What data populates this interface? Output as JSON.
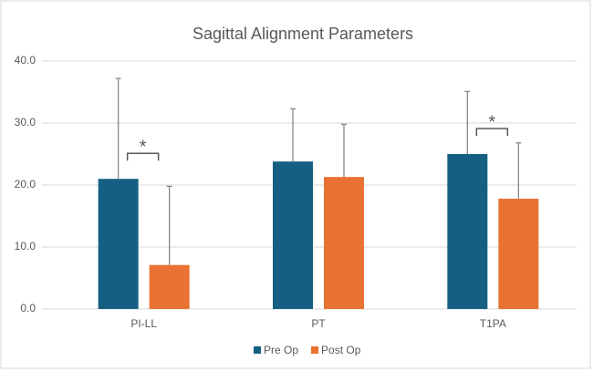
{
  "chart_data": {
    "type": "bar",
    "title": "Sagittal Alignment Parameters",
    "categories": [
      "PI-LL",
      "PT",
      "T1PA"
    ],
    "series": [
      {
        "name": "Pre Op",
        "color": "#156082",
        "values": [
          21.0,
          23.8,
          25.0
        ],
        "errors": [
          16.2,
          8.5,
          10.1
        ]
      },
      {
        "name": "Post Op",
        "color": "#e97132",
        "values": [
          7.1,
          21.3,
          17.8
        ],
        "errors": [
          12.7,
          8.5,
          9.0
        ]
      }
    ],
    "ylim": [
      0,
      40
    ],
    "yticks": [
      {
        "value": 0,
        "label": "0.0"
      },
      {
        "value": 10,
        "label": "10.0"
      },
      {
        "value": 20,
        "label": "20.0"
      },
      {
        "value": 30,
        "label": "30.0"
      },
      {
        "value": 40,
        "label": "40.0"
      }
    ],
    "grid": true,
    "legend": "bottom",
    "annotations": [
      {
        "text": "*",
        "category": "PI-LL"
      },
      {
        "text": "*",
        "category": "T1PA"
      }
    ]
  }
}
